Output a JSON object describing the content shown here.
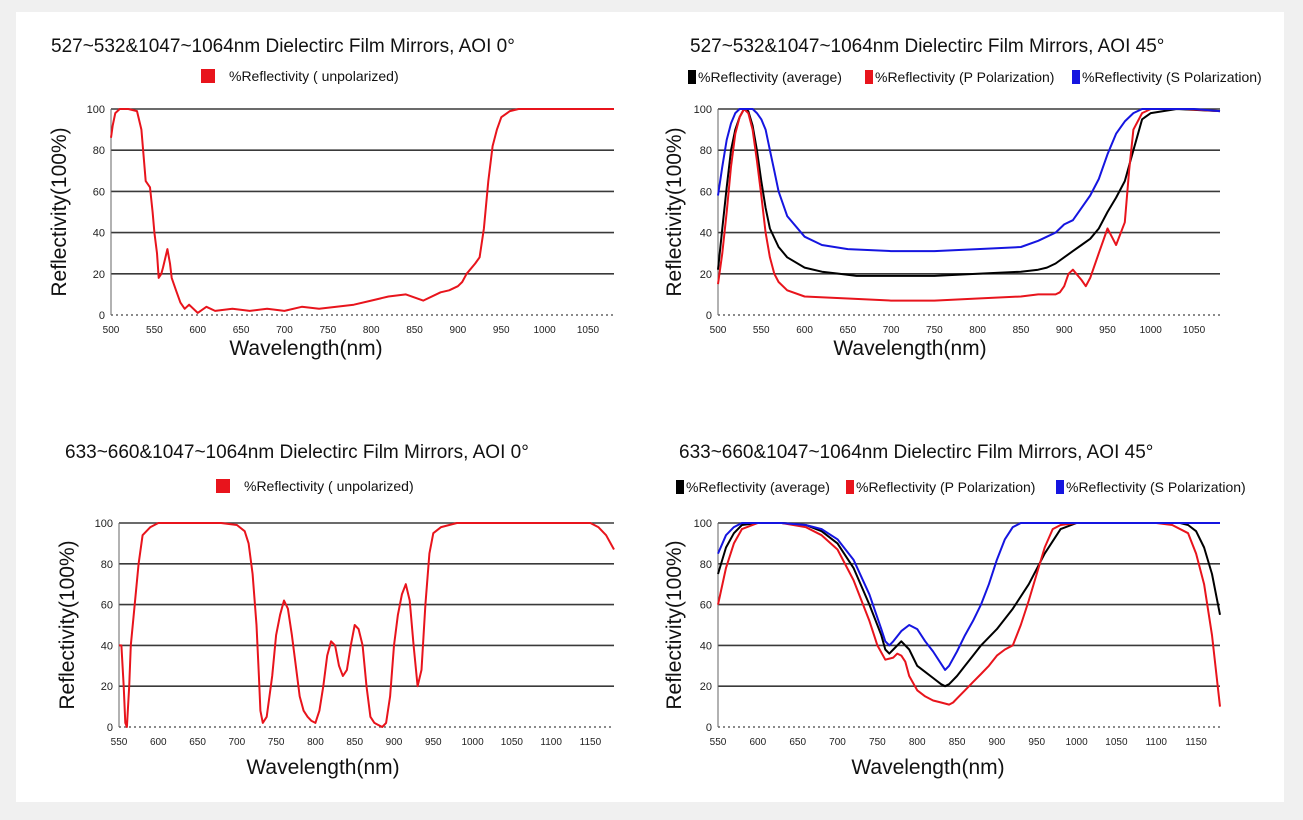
{
  "chart_data": [
    {
      "type": "line",
      "title": "527~532&1047~1064nm Dielectirc Film Mirrors, AOI 0°",
      "xlabel": "Wavelength(nm)",
      "ylabel": "Reflectivity(100%)",
      "xlim": [
        500,
        1080
      ],
      "ylim": [
        0,
        100
      ],
      "xticks": [
        500,
        550,
        600,
        650,
        700,
        750,
        800,
        850,
        900,
        950,
        1000,
        1050
      ],
      "yticks": [
        0,
        20,
        40,
        60,
        80,
        100
      ],
      "grid": "horizontal",
      "legend_position": "top",
      "series": [
        {
          "name": "%Reflectivity ( unpolarized)",
          "color": "#e8141c",
          "x": [
            500,
            502,
            505,
            510,
            520,
            530,
            535,
            540,
            545,
            548,
            550,
            553,
            555,
            558,
            560,
            565,
            568,
            570,
            575,
            580,
            585,
            590,
            600,
            610,
            620,
            640,
            660,
            680,
            700,
            720,
            740,
            760,
            780,
            800,
            820,
            840,
            860,
            880,
            890,
            900,
            905,
            910,
            920,
            925,
            930,
            935,
            940,
            945,
            950,
            960,
            970,
            980,
            1000,
            1030,
            1060,
            1080
          ],
          "y": [
            86,
            92,
            98,
            100,
            100,
            99,
            90,
            65,
            62,
            50,
            40,
            30,
            18,
            20,
            23,
            32,
            25,
            18,
            12,
            6,
            3,
            5,
            1,
            4,
            2,
            3,
            2,
            3,
            2,
            4,
            3,
            4,
            5,
            7,
            9,
            10,
            7,
            11,
            12,
            14,
            16,
            20,
            25,
            28,
            42,
            65,
            82,
            90,
            96,
            99,
            100,
            100,
            100,
            100,
            100,
            100
          ]
        }
      ]
    },
    {
      "type": "line",
      "title": "527~532&1047~1064nm Dielectirc Film Mirrors, AOI 45°",
      "xlabel": "Wavelength(nm)",
      "ylabel": "Reflectivity(100%)",
      "xlim": [
        500,
        1080
      ],
      "ylim": [
        0,
        100
      ],
      "xticks": [
        500,
        550,
        600,
        650,
        700,
        750,
        800,
        850,
        900,
        950,
        1000,
        1050
      ],
      "yticks": [
        0,
        20,
        40,
        60,
        80,
        100
      ],
      "grid": "horizontal",
      "legend_position": "top",
      "series": [
        {
          "name": "%Reflectivity (average)",
          "color": "#000000",
          "x": [
            500,
            505,
            510,
            515,
            520,
            525,
            530,
            535,
            540,
            545,
            550,
            555,
            560,
            570,
            580,
            600,
            620,
            640,
            660,
            700,
            750,
            800,
            850,
            870,
            880,
            890,
            900,
            910,
            920,
            930,
            940,
            950,
            960,
            970,
            980,
            990,
            1000,
            1030,
            1080
          ],
          "y": [
            22,
            42,
            62,
            80,
            90,
            96,
            100,
            99,
            92,
            80,
            65,
            52,
            42,
            33,
            28,
            23,
            21,
            20,
            19,
            19,
            19,
            20,
            21,
            22,
            23,
            25,
            28,
            31,
            34,
            37,
            42,
            50,
            57,
            65,
            80,
            95,
            98,
            100,
            99
          ]
        },
        {
          "name": "%Reflectivity (P Polarization)",
          "color": "#e8141c",
          "x": [
            500,
            505,
            510,
            515,
            520,
            525,
            530,
            535,
            540,
            545,
            550,
            555,
            560,
            565,
            570,
            580,
            600,
            650,
            700,
            750,
            800,
            850,
            870,
            880,
            890,
            895,
            900,
            905,
            910,
            920,
            925,
            930,
            940,
            950,
            955,
            960,
            970,
            975,
            980,
            990,
            1000,
            1040,
            1080
          ],
          "y": [
            15,
            30,
            50,
            72,
            88,
            96,
            100,
            98,
            90,
            75,
            58,
            40,
            28,
            20,
            16,
            12,
            9,
            8,
            7,
            7,
            8,
            9,
            10,
            10,
            10,
            11,
            14,
            20,
            22,
            17,
            14,
            18,
            30,
            42,
            38,
            34,
            45,
            70,
            90,
            98,
            100,
            100,
            99
          ]
        },
        {
          "name": "%Reflectivity (S Polarization)",
          "color": "#1515e0",
          "x": [
            500,
            505,
            510,
            515,
            520,
            525,
            530,
            540,
            545,
            550,
            555,
            560,
            565,
            570,
            580,
            600,
            620,
            650,
            700,
            750,
            800,
            850,
            870,
            880,
            890,
            900,
            910,
            920,
            930,
            940,
            950,
            960,
            970,
            980,
            990,
            1000,
            1050,
            1080
          ],
          "y": [
            58,
            72,
            85,
            93,
            98,
            100,
            100,
            100,
            98,
            95,
            90,
            80,
            70,
            60,
            48,
            38,
            34,
            32,
            31,
            31,
            32,
            33,
            36,
            38,
            40,
            44,
            46,
            52,
            58,
            66,
            78,
            88,
            94,
            98,
            100,
            100,
            100,
            99
          ]
        }
      ]
    },
    {
      "type": "line",
      "title": "633~660&1047~1064nm Dielectirc Film Mirrors, AOI 0°",
      "xlabel": "Wavelength(nm)",
      "ylabel": "Reflectivity(100%)",
      "xlim": [
        550,
        1180
      ],
      "ylim": [
        0,
        100
      ],
      "xticks": [
        550,
        600,
        650,
        700,
        750,
        800,
        850,
        900,
        950,
        1000,
        1050,
        1100,
        1150
      ],
      "yticks": [
        0,
        20,
        40,
        60,
        80,
        100
      ],
      "grid": "horizontal",
      "legend_position": "top",
      "series": [
        {
          "name": "%Reflectivity ( unpolarized)",
          "color": "#e8141c",
          "x": [
            550,
            553,
            556,
            558,
            560,
            563,
            565,
            570,
            575,
            580,
            590,
            600,
            620,
            650,
            680,
            700,
            710,
            715,
            720,
            725,
            728,
            730,
            733,
            738,
            745,
            750,
            755,
            760,
            765,
            770,
            775,
            780,
            785,
            790,
            795,
            800,
            805,
            810,
            815,
            820,
            825,
            830,
            835,
            840,
            845,
            850,
            855,
            860,
            865,
            870,
            875,
            880,
            885,
            890,
            895,
            900,
            905,
            910,
            915,
            920,
            925,
            930,
            935,
            940,
            945,
            950,
            960,
            980,
            1000,
            1050,
            1100,
            1150,
            1160,
            1170,
            1180
          ],
          "y": [
            40,
            40,
            20,
            2,
            0,
            20,
            40,
            60,
            80,
            94,
            98,
            100,
            100,
            100,
            100,
            99,
            96,
            90,
            75,
            50,
            25,
            8,
            2,
            5,
            25,
            45,
            55,
            62,
            58,
            45,
            30,
            15,
            8,
            5,
            3,
            2,
            8,
            20,
            35,
            42,
            40,
            30,
            25,
            28,
            40,
            50,
            48,
            40,
            20,
            5,
            2,
            1,
            0,
            2,
            15,
            40,
            55,
            65,
            70,
            62,
            40,
            20,
            28,
            60,
            85,
            95,
            98,
            100,
            100,
            100,
            100,
            100,
            98,
            94,
            87
          ]
        }
      ]
    },
    {
      "type": "line",
      "title": "633~660&1047~1064nm Dielectirc Film Mirrors, AOI 45°",
      "xlabel": "Wavelength(nm)",
      "ylabel": "Reflectivity(100%)",
      "xlim": [
        550,
        1180
      ],
      "ylim": [
        0,
        100
      ],
      "xticks": [
        550,
        600,
        650,
        700,
        750,
        800,
        850,
        900,
        950,
        1000,
        1050,
        1100,
        1150
      ],
      "yticks": [
        0,
        20,
        40,
        60,
        80,
        100
      ],
      "grid": "horizontal",
      "legend_position": "top",
      "series": [
        {
          "name": "%Reflectivity (average)",
          "color": "#000000",
          "x": [
            550,
            560,
            570,
            580,
            600,
            630,
            660,
            680,
            700,
            720,
            740,
            755,
            760,
            765,
            770,
            780,
            790,
            800,
            810,
            820,
            830,
            835,
            840,
            850,
            860,
            870,
            880,
            900,
            920,
            940,
            960,
            980,
            1000,
            1050,
            1100,
            1130,
            1140,
            1150,
            1160,
            1170,
            1180
          ],
          "y": [
            75,
            88,
            95,
            99,
            100,
            100,
            99,
            96,
            90,
            78,
            60,
            45,
            38,
            36,
            38,
            42,
            38,
            30,
            27,
            24,
            21,
            20,
            21,
            25,
            30,
            35,
            40,
            48,
            58,
            70,
            85,
            97,
            100,
            100,
            100,
            100,
            99,
            96,
            88,
            75,
            55
          ]
        },
        {
          "name": "%Reflectivity (P Polarization)",
          "color": "#e8141c",
          "x": [
            550,
            560,
            570,
            580,
            600,
            630,
            660,
            680,
            700,
            720,
            740,
            750,
            760,
            770,
            775,
            780,
            785,
            790,
            800,
            810,
            820,
            830,
            840,
            845,
            850,
            860,
            870,
            880,
            890,
            900,
            910,
            920,
            930,
            940,
            950,
            960,
            970,
            980,
            1000,
            1050,
            1100,
            1120,
            1140,
            1150,
            1160,
            1170,
            1180
          ],
          "y": [
            60,
            78,
            90,
            97,
            100,
            100,
            98,
            94,
            87,
            72,
            52,
            40,
            33,
            34,
            36,
            35,
            32,
            25,
            18,
            15,
            13,
            12,
            11,
            12,
            14,
            18,
            22,
            26,
            30,
            35,
            38,
            40,
            50,
            62,
            75,
            88,
            97,
            99,
            100,
            100,
            100,
            99,
            95,
            85,
            70,
            45,
            10
          ]
        },
        {
          "name": "%Reflectivity (S Polarization)",
          "color": "#1515e0",
          "x": [
            550,
            560,
            570,
            580,
            590,
            600,
            630,
            660,
            680,
            700,
            720,
            740,
            755,
            760,
            765,
            770,
            780,
            790,
            800,
            810,
            820,
            830,
            835,
            840,
            850,
            860,
            870,
            880,
            890,
            900,
            910,
            920,
            930,
            940,
            1000,
            1050,
            1100,
            1150,
            1180
          ],
          "y": [
            85,
            94,
            98,
            100,
            100,
            100,
            100,
            99,
            97,
            92,
            82,
            65,
            48,
            42,
            40,
            42,
            47,
            50,
            48,
            42,
            37,
            31,
            28,
            30,
            37,
            45,
            52,
            60,
            70,
            82,
            92,
            98,
            100,
            100,
            100,
            100,
            100,
            100,
            100
          ]
        }
      ]
    }
  ]
}
